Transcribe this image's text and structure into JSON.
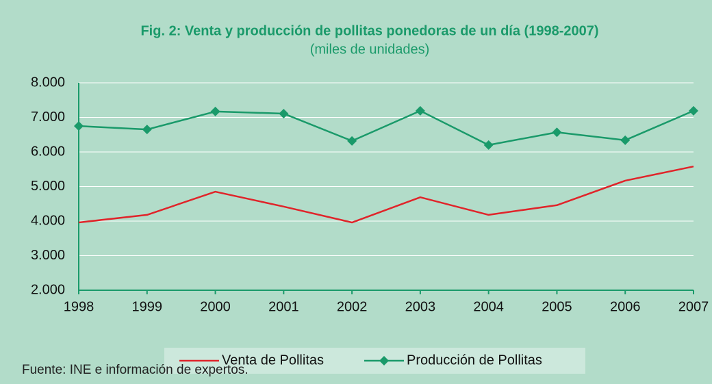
{
  "chart_data": {
    "type": "line",
    "title": "Fig. 2: Venta y producción de pollitas ponedoras de un día (1998-2007)",
    "subtitle": "(miles de unidades)",
    "x": [
      1998,
      1999,
      2000,
      2001,
      2002,
      2003,
      2004,
      2005,
      2006,
      2007
    ],
    "xlim": [
      1998,
      2007
    ],
    "xticks": [
      1998,
      1999,
      2000,
      2001,
      2002,
      2003,
      2004,
      2005,
      2006,
      2007
    ],
    "series": [
      {
        "name": "Venta de Pollitas",
        "color": "#e0242a",
        "values": [
          3960,
          4180,
          4850,
          4420,
          3960,
          4690,
          4180,
          4460,
          5170,
          5580
        ]
      },
      {
        "name": "Producción de Pollitas",
        "color": "#1a9a6a",
        "values": [
          6750,
          6650,
          7170,
          7110,
          6320,
          7190,
          6200,
          6570,
          6340,
          7190
        ]
      }
    ],
    "ylim": [
      2000,
      8000
    ],
    "yticks": [
      {
        "value": 2000,
        "label": "2.000"
      },
      {
        "value": 3000,
        "label": "3.000"
      },
      {
        "value": 4000,
        "label": "4.000"
      },
      {
        "value": 5000,
        "label": "5.000"
      },
      {
        "value": 6000,
        "label": "6.000"
      },
      {
        "value": 7000,
        "label": "7.000"
      },
      {
        "value": 8000,
        "label": "8.000"
      }
    ],
    "grid": true,
    "legend": "bottom",
    "source": "Fuente: INE e información de expertos."
  }
}
